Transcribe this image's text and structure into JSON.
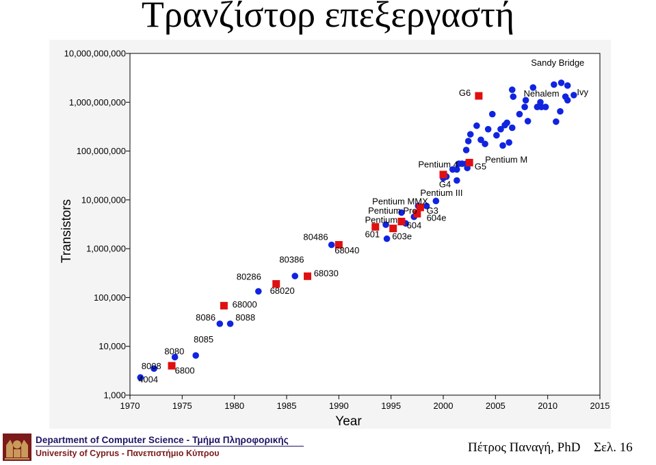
{
  "slide": {
    "title": "Τρανζίστορ επεξεργαστή",
    "footer": {
      "department": "Department of Computer Science - Τμήμα Πληροφορικής",
      "university": "University of Cyprus - Πανεπιστήμιο Κύπρου",
      "author": "Πέτρος Παναγή, PhD",
      "page": "Σελ. 16"
    }
  },
  "colors": {
    "intel": "#1024e0",
    "motorola_ibm": "#e01010",
    "panel": "#f4f4f4",
    "footer_blue": "#1b1464",
    "footer_red": "#7a1a1a"
  },
  "chart_data": {
    "type": "scatter",
    "xlabel": "Year",
    "ylabel": "Transistors",
    "xlim": [
      1970,
      2015
    ],
    "ylim": [
      1000,
      10000000000
    ],
    "yscale": "log",
    "grid": false,
    "x_ticks": [
      "1970",
      "1975",
      "1980",
      "1985",
      "1990",
      "1995",
      "2000",
      "2005",
      "2010",
      "2015"
    ],
    "y_ticks": [
      "1,000",
      "10,000",
      "100,000",
      "1,000,000",
      "10,000,000",
      "100,000,000",
      "1,000,000,000",
      "10,000,000,000"
    ],
    "series": [
      {
        "marker": "circle",
        "color": "#1024e0",
        "points": [
          [
            1971.0,
            2300
          ],
          [
            1972.3,
            3500
          ],
          [
            1974.3,
            6000
          ],
          [
            1976.3,
            6500
          ],
          [
            1978.6,
            29000
          ],
          [
            1979.6,
            29000
          ],
          [
            1982.3,
            134000
          ],
          [
            1985.8,
            275000
          ],
          [
            1989.3,
            1200000
          ],
          [
            1996.0,
            5500000
          ],
          [
            1997.2,
            4500000
          ],
          [
            1997.6,
            7500000
          ],
          [
            1998.4,
            7500000
          ],
          [
            1999.3,
            9500000
          ],
          [
            1996.4,
            3300000
          ],
          [
            1994.5,
            3100000
          ],
          [
            1994.6,
            1600000
          ],
          [
            2000.0,
            28000000
          ],
          [
            2000.3,
            30000000
          ],
          [
            2000.9,
            42000000
          ],
          [
            2001.3,
            42000000
          ],
          [
            2001.5,
            55000000
          ],
          [
            2001.8,
            55000000
          ],
          [
            2002.2,
            55000000
          ],
          [
            2001.3,
            25000000
          ],
          [
            2002.3,
            45000000
          ],
          [
            2002.2,
            105000000
          ],
          [
            2002.4,
            160000000
          ],
          [
            2002.6,
            220000000
          ],
          [
            2003.2,
            330000000
          ],
          [
            2003.6,
            170000000
          ],
          [
            2004.0,
            140000000
          ],
          [
            2004.3,
            280000000
          ],
          [
            2004.7,
            570000000
          ],
          [
            2005.1,
            210000000
          ],
          [
            2005.5,
            280000000
          ],
          [
            2005.9,
            340000000
          ],
          [
            2006.1,
            380000000
          ],
          [
            2005.7,
            130000000
          ],
          [
            2006.3,
            150000000
          ],
          [
            2006.6,
            1800000000
          ],
          [
            2006.6,
            300000000
          ],
          [
            2006.7,
            1300000000
          ],
          [
            2007.3,
            570000000
          ],
          [
            2007.8,
            800000000
          ],
          [
            2008.1,
            410000000
          ],
          [
            2007.9,
            1100000000
          ],
          [
            2008.6,
            2000000000
          ],
          [
            2009.0,
            800000000
          ],
          [
            2009.4,
            800000000
          ],
          [
            2009.8,
            800000000
          ],
          [
            2009.3,
            1000000000
          ],
          [
            2010.6,
            2300000000
          ],
          [
            2011.3,
            2500000000
          ],
          [
            2011.7,
            1300000000
          ],
          [
            2011.9,
            1100000000
          ],
          [
            2011.9,
            2200000000
          ],
          [
            2012.5,
            1400000000
          ],
          [
            2010.8,
            400000000
          ],
          [
            2011.2,
            650000000
          ]
        ]
      },
      {
        "marker": "square",
        "color": "#e01010",
        "points": [
          [
            1974.0,
            4000
          ],
          [
            1979.0,
            68000
          ],
          [
            1984.0,
            190000
          ],
          [
            1987.0,
            273000
          ],
          [
            1990.0,
            1200000
          ],
          [
            1993.5,
            2800000
          ],
          [
            1995.2,
            2600000
          ],
          [
            1996.0,
            3600000
          ],
          [
            1997.5,
            5200000
          ],
          [
            1997.8,
            7000000
          ],
          [
            2000.0,
            33000000
          ],
          [
            2002.5,
            58000000
          ],
          [
            2003.4,
            1350000000
          ]
        ]
      }
    ],
    "annotations": [
      {
        "text": "4004",
        "x": 1970.8,
        "y": 1820
      },
      {
        "text": "8008",
        "x": 1971.1,
        "y": 3400
      },
      {
        "text": "8080",
        "x": 1973.3,
        "y": 6800
      },
      {
        "text": "6800",
        "x": 1974.3,
        "y": 2750
      },
      {
        "text": "8085",
        "x": 1976.1,
        "y": 12000
      },
      {
        "text": "8086",
        "x": 1976.3,
        "y": 34000
      },
      {
        "text": "8088",
        "x": 1980.1,
        "y": 34000
      },
      {
        "text": "68000",
        "x": 1979.8,
        "y": 62000
      },
      {
        "text": "80286",
        "x": 1980.2,
        "y": 230000
      },
      {
        "text": "68020",
        "x": 1983.4,
        "y": 120000
      },
      {
        "text": "80386",
        "x": 1984.3,
        "y": 520000
      },
      {
        "text": "68030",
        "x": 1987.6,
        "y": 270000
      },
      {
        "text": "80486",
        "x": 1986.6,
        "y": 1500000
      },
      {
        "text": "68040",
        "x": 1989.6,
        "y": 800000
      },
      {
        "text": "601",
        "x": 1992.5,
        "y": 1700000
      },
      {
        "text": "603e",
        "x": 1995.1,
        "y": 1550000
      },
      {
        "text": "604",
        "x": 1996.5,
        "y": 2600000
      },
      {
        "text": "604e",
        "x": 1998.4,
        "y": 3700000
      },
      {
        "text": "G3",
        "x": 1998.4,
        "y": 5200000
      },
      {
        "text": "Pentium",
        "x": 1992.5,
        "y": 3400000
      },
      {
        "text": "Pentium Pro",
        "x": 1992.8,
        "y": 5200000
      },
      {
        "text": "Pentium MMX",
        "x": 1993.2,
        "y": 8100000
      },
      {
        "text": "Pentium III",
        "x": 1997.8,
        "y": 12000000
      },
      {
        "text": "G4",
        "x": 1999.6,
        "y": 18000000
      },
      {
        "text": "Pentium 4",
        "x": 1997.6,
        "y": 46000000
      },
      {
        "text": "G5",
        "x": 2003.0,
        "y": 42000000
      },
      {
        "text": "Pentium M",
        "x": 2004.0,
        "y": 58000000
      },
      {
        "text": "G6",
        "x": 2001.5,
        "y": 1350000000
      },
      {
        "text": "Nehalem",
        "x": 2007.7,
        "y": 1300000000
      },
      {
        "text": "Sandy Bridge",
        "x": 2008.4,
        "y": 5600000000
      },
      {
        "text": "Ivy",
        "x": 2012.8,
        "y": 1400000000
      }
    ]
  }
}
